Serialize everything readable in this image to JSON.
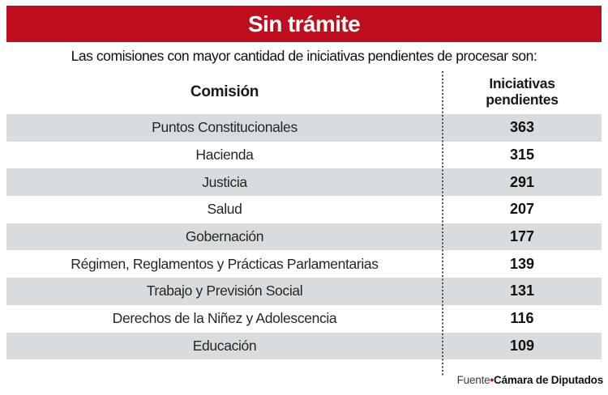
{
  "banner": {
    "title": "Sin trámite",
    "bg_color": "#c00d1e",
    "text_color": "#ffffff"
  },
  "subtitle": "Las comisiones con mayor cantidad de iniciativas pendientes de procesar son:",
  "table": {
    "col1_header": "Comisión",
    "col2_header": "Iniciativas pendientes",
    "row_alt_color": "#d8dcdf"
  },
  "chart_data": {
    "type": "table",
    "title": "Sin trámite",
    "subtitle": "Las comisiones con mayor cantidad de iniciativas pendientes de procesar son:",
    "columns": [
      "Comisión",
      "Iniciativas pendientes"
    ],
    "categories": [
      "Puntos Constitucionales",
      "Hacienda",
      "Justicia",
      "Salud",
      "Gobernación",
      "Régimen, Reglamentos y Prácticas Parlamentarias",
      "Trabajo y Previsión Social",
      "Derechos de la Niñez y Adolescencia",
      "Educación"
    ],
    "values": [
      363,
      315,
      291,
      207,
      177,
      139,
      131,
      116,
      109
    ],
    "layout": {
      "zebra_start": "first_row_shaded",
      "value_column": "right"
    }
  },
  "footer": {
    "source_label": "Fuente",
    "bullet": "•",
    "source_name": "Cámara de Diputados",
    "bullet_color": "#c00d1e"
  }
}
